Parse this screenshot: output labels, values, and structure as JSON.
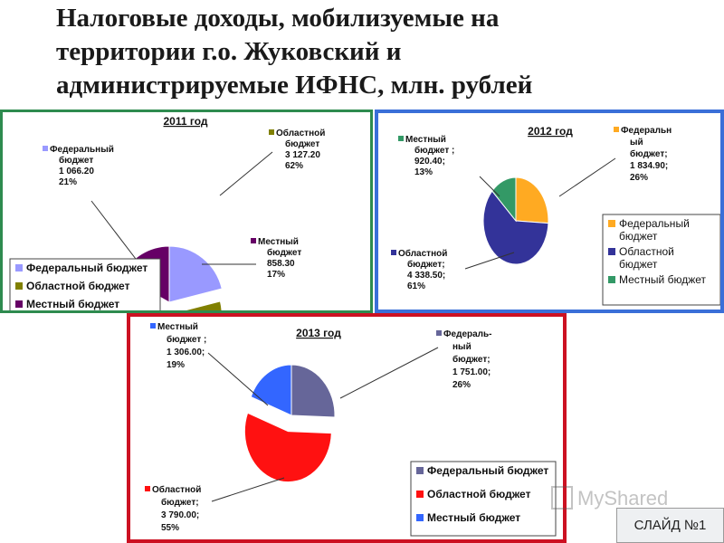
{
  "page": {
    "title_lines": [
      "Налоговые доходы, мобилизуемые на",
      "территории г.о. Жуковский и",
      "администрируемые ИФНС, млн. рублей"
    ],
    "slide_label": "СЛАЙД №1",
    "watermark_text": "MyShared"
  },
  "chart_data": [
    {
      "type": "pie",
      "title": "2011 год",
      "border_color": "#2e8b4f",
      "slices": [
        {
          "name": "Федеральный бюджет",
          "value": 1066.2,
          "percent": 21,
          "color": "#9999ff",
          "label_lines": [
            "Федеральный",
            "бюджет",
            "1 066.20",
            "21%"
          ]
        },
        {
          "name": "Областной бюджет",
          "value": 3127.2,
          "percent": 62,
          "color": "#808000",
          "label_lines": [
            "Областной",
            "бюджет",
            "3 127.20",
            "62%"
          ]
        },
        {
          "name": "Местный бюджет",
          "value": 858.3,
          "percent": 17,
          "color": "#660066",
          "label_lines": [
            "Местный",
            "бюджет",
            "858.30",
            "17%"
          ]
        }
      ],
      "legend": [
        "Федеральный бюджет",
        "Областной бюджет",
        "Местный бюджет"
      ],
      "legend_position": "bottom-left"
    },
    {
      "type": "pie",
      "title": "2012 год",
      "border_color": "#3a6fd8",
      "slices": [
        {
          "name": "Федеральный бюджет",
          "value": 1834.9,
          "percent": 26,
          "color": "#ffaa22",
          "label_lines": [
            "Федеральн",
            "ый",
            "бюджет;",
            "1 834.90;",
            "26%"
          ]
        },
        {
          "name": "Областной бюджет",
          "value": 4338.5,
          "percent": 61,
          "color": "#333399",
          "label_lines": [
            "Областной",
            "бюджет;",
            "4 338.50;",
            "61%"
          ]
        },
        {
          "name": "Местный бюджет",
          "value": 920.4,
          "percent": 13,
          "color": "#339966",
          "label_lines": [
            "Местный",
            "бюджет ;",
            "920.40;",
            "13%"
          ]
        }
      ],
      "legend": [
        "Федеральный бюджет",
        "Областной бюджет",
        "Местный бюджет"
      ],
      "legend_position": "right"
    },
    {
      "type": "pie",
      "title": "2013 год",
      "border_color": "#cc1122",
      "slices": [
        {
          "name": "Федеральный бюджет",
          "value": 1751.0,
          "percent": 26,
          "color": "#666699",
          "label_lines": [
            "Федераль-",
            "ный",
            "бюджет;",
            "1 751.00;",
            "26%"
          ]
        },
        {
          "name": "Областной бюджет",
          "value": 3790.0,
          "percent": 55,
          "color": "#ff1111",
          "label_lines": [
            "Областной",
            "бюджет;",
            "3 790.00;",
            "55%"
          ]
        },
        {
          "name": "Местный бюджет",
          "value": 1306.0,
          "percent": 19,
          "color": "#3366ff",
          "label_lines": [
            "Местный",
            "бюджет ;",
            "1 306.00;",
            "19%"
          ]
        }
      ],
      "legend": [
        "Федеральный бюджет",
        "Областной бюджет",
        "Местный бюджет"
      ],
      "legend_position": "bottom-right"
    }
  ]
}
